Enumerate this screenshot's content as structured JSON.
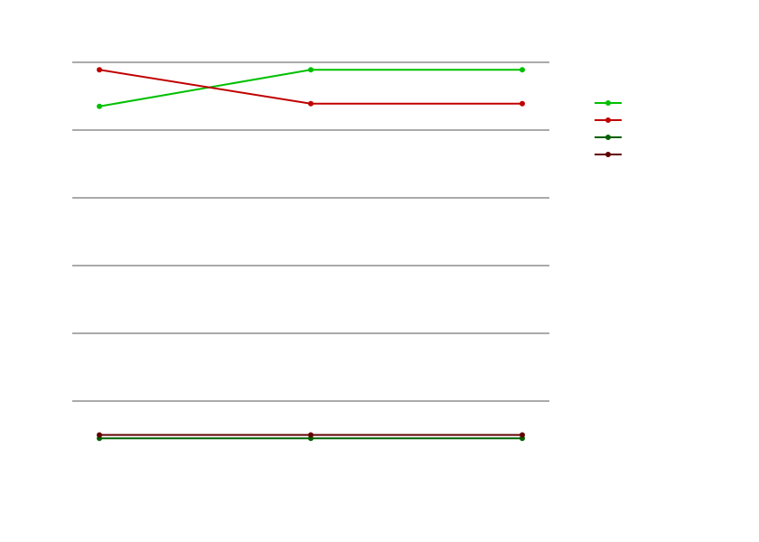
{
  "chart_data": {
    "type": "line",
    "title": "",
    "xlabel": "",
    "ylabel": "",
    "x": [
      0,
      1,
      2
    ],
    "ylim": [
      0,
      6
    ],
    "yticks": [
      1,
      2,
      3,
      4,
      5,
      6
    ],
    "grid": "horizontal",
    "legend_position": "right",
    "series": [
      {
        "color": "#00c000",
        "values": [
          5.35,
          5.89,
          5.89
        ]
      },
      {
        "color": "#c00000",
        "values": [
          5.89,
          5.39,
          5.39
        ]
      },
      {
        "color": "#006000",
        "values": [
          0.45,
          0.45,
          0.45
        ]
      },
      {
        "color": "#600000",
        "values": [
          0.5,
          0.5,
          0.5
        ]
      }
    ]
  }
}
